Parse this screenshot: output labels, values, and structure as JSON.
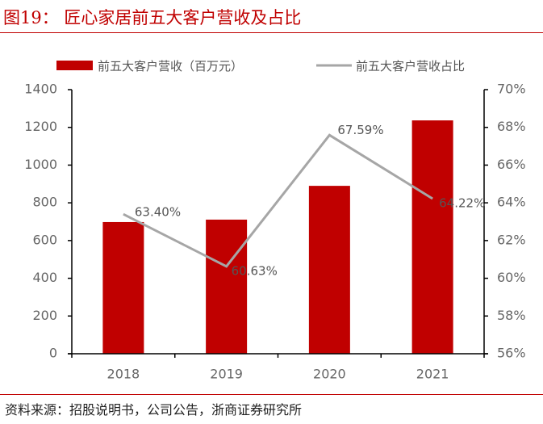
{
  "header": {
    "title": "图19：  匠心家居前五大客户营收及占比"
  },
  "footer": {
    "source": "资料来源：招股说明书，公司公告，浙商证券研究所"
  },
  "colors": {
    "bar": "#c00000",
    "line": "#a6a6a6",
    "accent": "#c00000"
  },
  "chart_data": {
    "type": "bar",
    "title": "匠心家居前五大客户营收及占比",
    "categories": [
      "2018",
      "2019",
      "2020",
      "2021"
    ],
    "series": [
      {
        "name": "前五大客户营收（百万元）",
        "type": "bar",
        "axis": "left",
        "values": [
          698,
          711,
          890,
          1237
        ]
      },
      {
        "name": "前五大客户营收占比",
        "type": "line",
        "axis": "right",
        "values": [
          63.4,
          60.63,
          67.59,
          64.22
        ],
        "labels": [
          "63.40%",
          "60.63%",
          "67.59%",
          "64.22%"
        ]
      }
    ],
    "y_left": {
      "ylim": [
        0,
        1400
      ],
      "ticks": [
        "0",
        "200",
        "400",
        "600",
        "800",
        "1000",
        "1200",
        "1400"
      ]
    },
    "y_right": {
      "ylim": [
        56,
        70
      ],
      "ticks": [
        "56%",
        "58%",
        "60%",
        "62%",
        "64%",
        "66%",
        "68%",
        "70%"
      ]
    },
    "legend": {
      "position": "top",
      "items": [
        "前五大客户营收（百万元）",
        "前五大客户营收占比"
      ]
    },
    "grid": false
  }
}
